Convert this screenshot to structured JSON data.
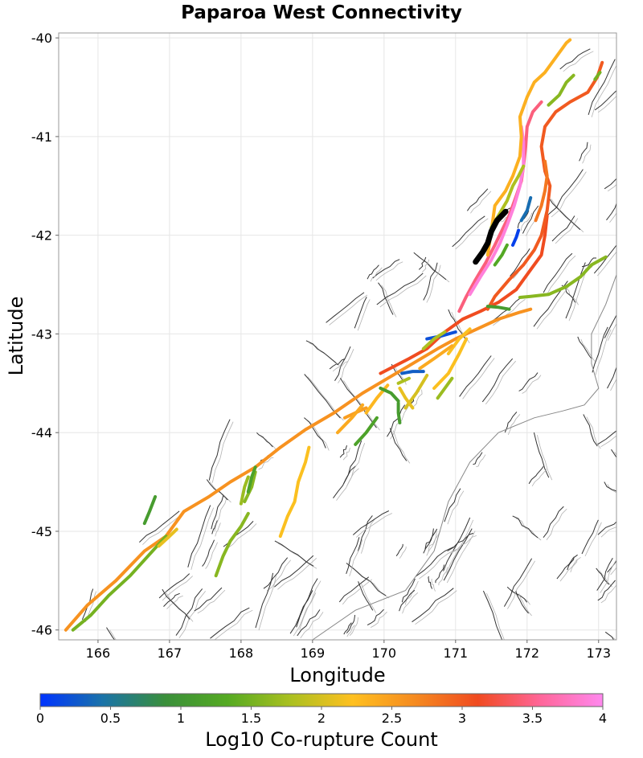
{
  "chart_data": {
    "type": "map-line",
    "title": "Paparoa West Connectivity",
    "xlabel": "Longitude",
    "ylabel": "Latitude",
    "xlim": [
      165.45,
      173.25
    ],
    "ylim": [
      -46.1,
      -39.95
    ],
    "x_ticks": [
      "166",
      "167",
      "168",
      "169",
      "170",
      "171",
      "172",
      "173"
    ],
    "y_ticks": [
      "-40",
      "-41",
      "-42",
      "-43",
      "-44",
      "-45",
      "-46"
    ],
    "grid": true,
    "colorbar": {
      "label": "Log10 Co-rupture Count",
      "range": [
        0,
        4
      ],
      "ticks": [
        "0",
        "0.5",
        "1",
        "1.5",
        "2",
        "2.5",
        "3",
        "3.5",
        "4"
      ],
      "stops": [
        "#0033ff",
        "#1a73a8",
        "#3a8f3a",
        "#55aa22",
        "#aac020",
        "#ffc020",
        "#f58a20",
        "#f04a20",
        "#ff6699",
        "#ff88ee"
      ]
    },
    "source_fault": {
      "name": "Paparoa West",
      "color": "#000000",
      "trace": [
        [
          171.28,
          -42.27
        ],
        [
          171.38,
          -42.17
        ],
        [
          171.45,
          -42.08
        ],
        [
          171.5,
          -41.96
        ],
        [
          171.58,
          -41.85
        ],
        [
          171.7,
          -41.76
        ]
      ]
    },
    "corupture_faults": [
      {
        "value": 2.6,
        "trace": [
          [
            165.55,
            -46.0
          ],
          [
            165.85,
            -45.75
          ],
          [
            166.25,
            -45.5
          ],
          [
            166.65,
            -45.2
          ],
          [
            166.95,
            -45.05
          ],
          [
            167.2,
            -44.8
          ],
          [
            167.55,
            -44.65
          ],
          [
            167.85,
            -44.5
          ],
          [
            168.2,
            -44.35
          ],
          [
            168.55,
            -44.15
          ],
          [
            168.9,
            -43.97
          ],
          [
            169.3,
            -43.8
          ],
          [
            169.7,
            -43.6
          ],
          [
            170.05,
            -43.45
          ],
          [
            170.4,
            -43.3
          ],
          [
            170.75,
            -43.15
          ],
          [
            171.0,
            -43.05
          ],
          [
            171.3,
            -42.95
          ],
          [
            171.6,
            -42.85
          ],
          [
            171.9,
            -42.78
          ],
          [
            172.05,
            -42.75
          ]
        ]
      },
      {
        "value": 3.1,
        "trace": [
          [
            169.95,
            -43.4
          ],
          [
            170.35,
            -43.25
          ],
          [
            170.6,
            -43.15
          ],
          [
            170.85,
            -42.98
          ],
          [
            171.1,
            -42.85
          ],
          [
            171.35,
            -42.77
          ],
          [
            171.6,
            -42.68
          ],
          [
            171.85,
            -42.55
          ],
          [
            172.05,
            -42.35
          ],
          [
            172.2,
            -42.2
          ],
          [
            172.25,
            -42.0
          ],
          [
            172.28,
            -41.8
          ]
        ]
      },
      {
        "value": 3.0,
        "trace": [
          [
            171.45,
            -42.75
          ],
          [
            171.55,
            -42.62
          ],
          [
            171.75,
            -42.45
          ],
          [
            171.95,
            -42.3
          ],
          [
            172.1,
            -42.15
          ],
          [
            172.2,
            -42.0
          ],
          [
            172.28,
            -41.75
          ],
          [
            172.32,
            -41.5
          ],
          [
            172.25,
            -41.35
          ],
          [
            172.2,
            -41.1
          ],
          [
            172.25,
            -40.9
          ],
          [
            172.4,
            -40.75
          ],
          [
            172.6,
            -40.65
          ],
          [
            172.85,
            -40.55
          ],
          [
            172.98,
            -40.4
          ],
          [
            173.05,
            -40.25
          ]
        ]
      },
      {
        "value": 3.45,
        "trace": [
          [
            171.05,
            -42.77
          ],
          [
            171.15,
            -42.62
          ],
          [
            171.28,
            -42.45
          ],
          [
            171.42,
            -42.28
          ],
          [
            171.55,
            -42.1
          ],
          [
            171.65,
            -41.95
          ],
          [
            171.75,
            -41.8
          ],
          [
            171.85,
            -41.6
          ],
          [
            171.92,
            -41.45
          ],
          [
            171.95,
            -41.3
          ],
          [
            171.98,
            -41.1
          ],
          [
            172.0,
            -40.9
          ],
          [
            172.08,
            -40.75
          ],
          [
            172.2,
            -40.65
          ]
        ]
      },
      {
        "value": 3.9,
        "trace": [
          [
            171.2,
            -42.6
          ],
          [
            171.35,
            -42.42
          ],
          [
            171.5,
            -42.25
          ],
          [
            171.62,
            -42.08
          ],
          [
            171.72,
            -41.9
          ],
          [
            171.82,
            -41.7
          ],
          [
            171.9,
            -41.5
          ],
          [
            171.95,
            -41.3
          ],
          [
            171.95,
            -41.05
          ],
          [
            171.92,
            -40.9
          ]
        ]
      },
      {
        "value": 2.35,
        "trace": [
          [
            171.45,
            -42.2
          ],
          [
            171.48,
            -42.05
          ],
          [
            171.52,
            -41.85
          ],
          [
            171.55,
            -41.7
          ],
          [
            171.7,
            -41.55
          ],
          [
            171.8,
            -41.4
          ],
          [
            171.9,
            -41.2
          ],
          [
            171.92,
            -41.0
          ],
          [
            171.9,
            -40.8
          ],
          [
            172.0,
            -40.6
          ],
          [
            172.1,
            -40.45
          ],
          [
            172.25,
            -40.35
          ],
          [
            172.35,
            -40.25
          ],
          [
            172.45,
            -40.15
          ],
          [
            172.55,
            -40.05
          ],
          [
            172.6,
            -40.02
          ]
        ]
      },
      {
        "value": 1.8,
        "trace": [
          [
            171.5,
            -41.92
          ],
          [
            171.6,
            -41.8
          ],
          [
            171.72,
            -41.65
          ],
          [
            171.8,
            -41.5
          ],
          [
            171.88,
            -41.4
          ],
          [
            171.95,
            -41.3
          ]
        ]
      },
      {
        "value": 1.6,
        "trace": [
          [
            172.3,
            -40.68
          ],
          [
            172.45,
            -40.58
          ],
          [
            172.55,
            -40.45
          ],
          [
            172.65,
            -40.38
          ]
        ]
      },
      {
        "value": 2.8,
        "trace": [
          [
            172.12,
            -41.85
          ],
          [
            172.2,
            -41.7
          ],
          [
            172.25,
            -41.55
          ],
          [
            172.28,
            -41.4
          ],
          [
            172.25,
            -41.25
          ]
        ]
      },
      {
        "value": 1.5,
        "trace": [
          [
            172.95,
            -40.42
          ],
          [
            173.02,
            -40.35
          ]
        ]
      },
      {
        "value": 0.4,
        "trace": [
          [
            171.92,
            -41.85
          ],
          [
            172.0,
            -41.75
          ],
          [
            172.05,
            -41.62
          ]
        ]
      },
      {
        "value": 0.1,
        "trace": [
          [
            171.8,
            -42.1
          ],
          [
            171.85,
            -42.02
          ],
          [
            171.88,
            -41.95
          ]
        ]
      },
      {
        "value": 1.3,
        "trace": [
          [
            171.55,
            -42.3
          ],
          [
            171.65,
            -42.2
          ],
          [
            171.72,
            -42.1
          ]
        ]
      },
      {
        "value": 1.6,
        "trace": [
          [
            171.9,
            -42.63
          ],
          [
            172.05,
            -42.62
          ],
          [
            172.3,
            -42.6
          ],
          [
            172.55,
            -42.52
          ],
          [
            172.75,
            -42.42
          ],
          [
            172.9,
            -42.3
          ],
          [
            173.1,
            -42.22
          ]
        ]
      },
      {
        "value": 1.1,
        "trace": [
          [
            171.45,
            -42.72
          ],
          [
            171.6,
            -42.73
          ],
          [
            171.75,
            -42.75
          ]
        ]
      },
      {
        "value": 0.2,
        "trace": [
          [
            170.6,
            -43.05
          ],
          [
            170.8,
            -43.02
          ],
          [
            171.0,
            -42.98
          ]
        ]
      },
      {
        "value": 0.3,
        "trace": [
          [
            170.25,
            -43.4
          ],
          [
            170.4,
            -43.38
          ],
          [
            170.55,
            -43.38
          ]
        ]
      },
      {
        "value": 1.8,
        "trace": [
          [
            170.55,
            -43.15
          ],
          [
            170.7,
            -43.05
          ],
          [
            170.85,
            -42.98
          ]
        ]
      },
      {
        "value": 2.2,
        "trace": [
          [
            170.9,
            -43.2
          ],
          [
            171.05,
            -43.05
          ],
          [
            171.2,
            -42.95
          ]
        ]
      },
      {
        "value": 2.4,
        "trace": [
          [
            170.5,
            -43.35
          ],
          [
            170.7,
            -43.25
          ],
          [
            170.95,
            -43.12
          ]
        ]
      },
      {
        "value": 2.2,
        "trace": [
          [
            170.7,
            -43.55
          ],
          [
            170.9,
            -43.4
          ],
          [
            171.05,
            -43.2
          ],
          [
            171.15,
            -43.05
          ]
        ]
      },
      {
        "value": 2.0,
        "trace": [
          [
            170.3,
            -43.75
          ],
          [
            170.45,
            -43.6
          ],
          [
            170.6,
            -43.42
          ]
        ]
      },
      {
        "value": 1.8,
        "trace": [
          [
            170.2,
            -43.5
          ],
          [
            170.35,
            -43.45
          ]
        ]
      },
      {
        "value": 2.3,
        "trace": [
          [
            169.75,
            -43.8
          ],
          [
            169.9,
            -43.65
          ],
          [
            170.05,
            -43.52
          ]
        ]
      },
      {
        "value": 1.1,
        "trace": [
          [
            169.95,
            -43.55
          ],
          [
            170.1,
            -43.6
          ],
          [
            170.2,
            -43.68
          ]
        ]
      },
      {
        "value": 2.5,
        "trace": [
          [
            169.75,
            -43.75
          ],
          [
            169.6,
            -43.8
          ],
          [
            169.45,
            -43.85
          ]
        ]
      },
      {
        "value": 2.4,
        "trace": [
          [
            169.35,
            -44.0
          ],
          [
            169.55,
            -43.85
          ],
          [
            169.7,
            -43.72
          ]
        ]
      },
      {
        "value": 2.1,
        "trace": [
          [
            170.4,
            -43.75
          ],
          [
            170.3,
            -43.65
          ],
          [
            170.22,
            -43.55
          ]
        ]
      },
      {
        "value": 1.7,
        "trace": [
          [
            170.75,
            -43.65
          ],
          [
            170.85,
            -43.55
          ],
          [
            170.95,
            -43.45
          ]
        ]
      },
      {
        "value": 1.2,
        "trace": [
          [
            169.6,
            -44.12
          ],
          [
            169.75,
            -44.0
          ],
          [
            169.9,
            -43.85
          ]
        ]
      },
      {
        "value": 1.1,
        "trace": [
          [
            170.2,
            -43.7
          ],
          [
            170.2,
            -43.8
          ],
          [
            170.22,
            -43.9
          ]
        ]
      },
      {
        "value": 2.2,
        "trace": [
          [
            168.55,
            -45.05
          ],
          [
            168.65,
            -44.85
          ],
          [
            168.75,
            -44.7
          ],
          [
            168.8,
            -44.5
          ],
          [
            168.9,
            -44.3
          ],
          [
            168.95,
            -44.15
          ]
        ]
      },
      {
        "value": 1.6,
        "trace": [
          [
            167.65,
            -45.45
          ],
          [
            167.75,
            -45.25
          ],
          [
            167.85,
            -45.1
          ],
          [
            168.0,
            -44.95
          ],
          [
            168.1,
            -44.82
          ]
        ]
      },
      {
        "value": 1.6,
        "trace": [
          [
            168.05,
            -44.7
          ],
          [
            168.15,
            -44.55
          ],
          [
            168.2,
            -44.4
          ]
        ]
      },
      {
        "value": 1.2,
        "trace": [
          [
            168.1,
            -44.6
          ],
          [
            168.15,
            -44.45
          ],
          [
            168.2,
            -44.35
          ]
        ]
      },
      {
        "value": 1.7,
        "trace": [
          [
            168.0,
            -44.72
          ],
          [
            168.05,
            -44.55
          ],
          [
            168.1,
            -44.45
          ]
        ]
      },
      {
        "value": 1.1,
        "trace": [
          [
            166.65,
            -44.92
          ],
          [
            166.72,
            -44.8
          ],
          [
            166.8,
            -44.65
          ]
        ]
      },
      {
        "value": 1.5,
        "trace": [
          [
            165.65,
            -46.0
          ],
          [
            165.9,
            -45.85
          ],
          [
            166.15,
            -45.65
          ],
          [
            166.45,
            -45.45
          ],
          [
            166.7,
            -45.25
          ],
          [
            166.95,
            -45.05
          ]
        ]
      },
      {
        "value": 2.1,
        "trace": [
          [
            166.85,
            -45.15
          ],
          [
            167.0,
            -45.05
          ],
          [
            167.1,
            -44.98
          ]
        ]
      }
    ]
  }
}
